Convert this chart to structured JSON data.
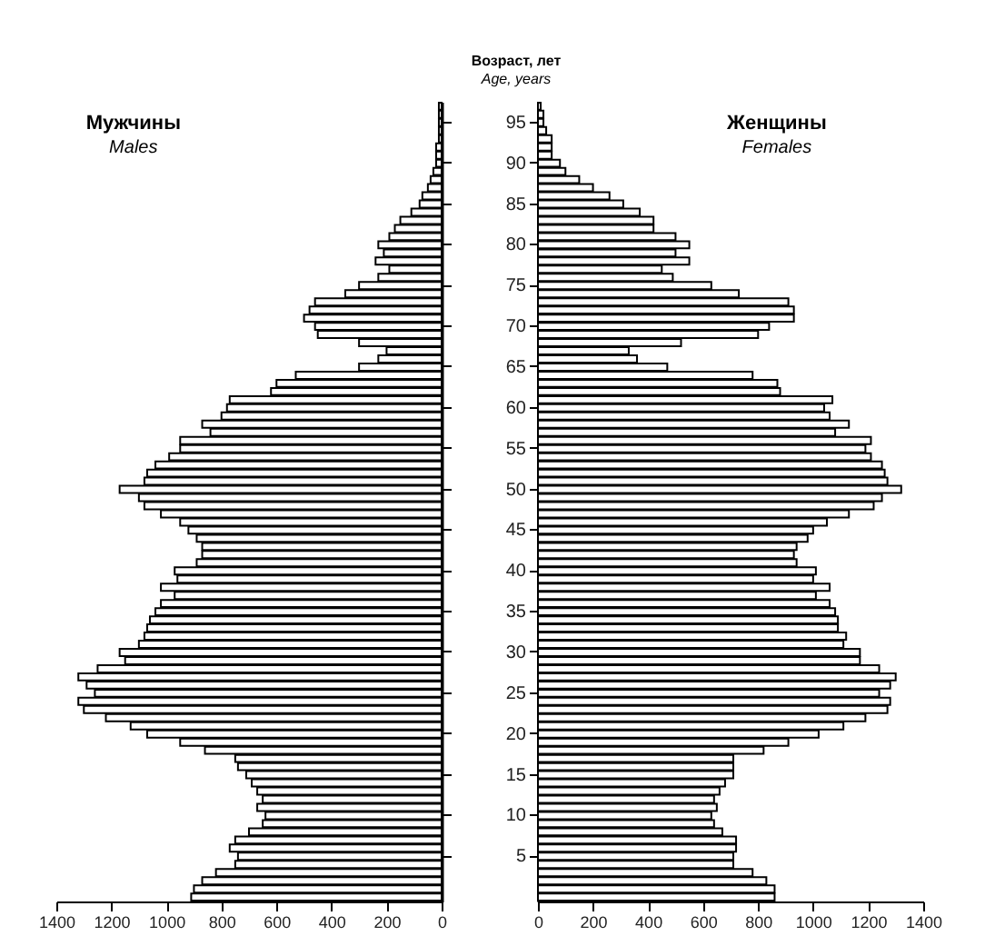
{
  "chart_data": [
    {
      "type": "bar",
      "orientation": "horizontal",
      "title": "Мужчины",
      "subtitle": "Males",
      "color": "#ffffff",
      "tick_labels": "x",
      "categories": [
        null,
        null,
        "95",
        null,
        null,
        null,
        null,
        "90",
        null,
        null,
        null,
        null,
        "85",
        null,
        null,
        null,
        null,
        "80",
        null,
        null,
        null,
        null,
        "75",
        null,
        null,
        null,
        null,
        "70",
        null,
        null,
        null,
        null,
        "65",
        null,
        null,
        null,
        null,
        "60",
        null,
        null,
        null,
        null,
        "55",
        null,
        null,
        null,
        null,
        "50",
        null,
        null,
        null,
        null,
        "45",
        null,
        null,
        null,
        null,
        "40",
        null,
        null,
        null,
        null,
        "35",
        null,
        null,
        null,
        null,
        "30",
        null,
        null,
        null,
        null,
        "25",
        null,
        null,
        null,
        null,
        "20",
        null,
        null,
        null,
        null,
        "15",
        null,
        null,
        null,
        null,
        "10",
        null,
        null,
        null,
        null,
        "5",
        null,
        null,
        null,
        null,
        null
      ],
      "values": [
        10,
        10,
        10,
        10,
        10,
        20,
        20,
        20,
        30,
        40,
        50,
        70,
        80,
        110,
        150,
        170,
        190,
        230,
        210,
        240,
        190,
        230,
        300,
        350,
        460,
        480,
        500,
        460,
        450,
        300,
        200,
        230,
        300,
        530,
        600,
        620,
        770,
        780,
        800,
        870,
        840,
        950,
        950,
        990,
        1040,
        1070,
        1080,
        1170,
        1100,
        1080,
        1020,
        950,
        920,
        890,
        870,
        870,
        890,
        970,
        960,
        1020,
        970,
        1020,
        1040,
        1060,
        1070,
        1080,
        1100,
        1170,
        1150,
        1250,
        1320,
        1290,
        1260,
        1320,
        1300,
        1220,
        1130,
        1070,
        950,
        860,
        750,
        740,
        710,
        690,
        670,
        650,
        670,
        640,
        650,
        700,
        750,
        770,
        740,
        750,
        820,
        870,
        900,
        910
      ],
      "xlim": [
        1400,
        0
      ],
      "xticks": [
        1400,
        1200,
        1000,
        800,
        600,
        400,
        200,
        0
      ]
    },
    {
      "type": "bar",
      "orientation": "horizontal",
      "title": "Женщины",
      "subtitle": "Females",
      "ylabel": "Возраст, лет\nAge, years",
      "color": "#ffffff",
      "categories": [
        null,
        null,
        "95",
        null,
        null,
        null,
        null,
        "90",
        null,
        null,
        null,
        null,
        "85",
        null,
        null,
        null,
        null,
        "80",
        null,
        null,
        null,
        null,
        "75",
        null,
        null,
        null,
        null,
        "70",
        null,
        null,
        null,
        null,
        "65",
        null,
        null,
        null,
        null,
        "60",
        null,
        null,
        null,
        null,
        "55",
        null,
        null,
        null,
        null,
        "50",
        null,
        null,
        null,
        null,
        "45",
        null,
        null,
        null,
        null,
        "40",
        null,
        null,
        null,
        null,
        "35",
        null,
        null,
        null,
        null,
        "30",
        null,
        null,
        null,
        null,
        "25",
        null,
        null,
        null,
        null,
        "20",
        null,
        null,
        null,
        null,
        "15",
        null,
        null,
        null,
        null,
        "10",
        null,
        null,
        null,
        null,
        "5",
        null,
        null,
        null,
        null,
        null
      ],
      "values": [
        10,
        20,
        20,
        30,
        50,
        50,
        50,
        80,
        100,
        150,
        200,
        260,
        310,
        370,
        420,
        420,
        500,
        550,
        500,
        550,
        450,
        490,
        630,
        730,
        910,
        930,
        930,
        840,
        800,
        520,
        330,
        360,
        470,
        780,
        870,
        880,
        1070,
        1040,
        1060,
        1130,
        1080,
        1210,
        1190,
        1210,
        1250,
        1260,
        1270,
        1320,
        1250,
        1220,
        1130,
        1050,
        1000,
        980,
        940,
        930,
        940,
        1010,
        1000,
        1060,
        1010,
        1060,
        1080,
        1090,
        1090,
        1120,
        1110,
        1170,
        1170,
        1240,
        1300,
        1280,
        1240,
        1280,
        1270,
        1190,
        1110,
        1020,
        910,
        820,
        710,
        710,
        710,
        680,
        660,
        640,
        650,
        630,
        640,
        670,
        720,
        720,
        710,
        710,
        780,
        830,
        860,
        860
      ],
      "xlim": [
        0,
        1400
      ],
      "xticks": [
        0,
        200,
        400,
        600,
        800,
        1000,
        1200,
        1400
      ]
    }
  ]
}
